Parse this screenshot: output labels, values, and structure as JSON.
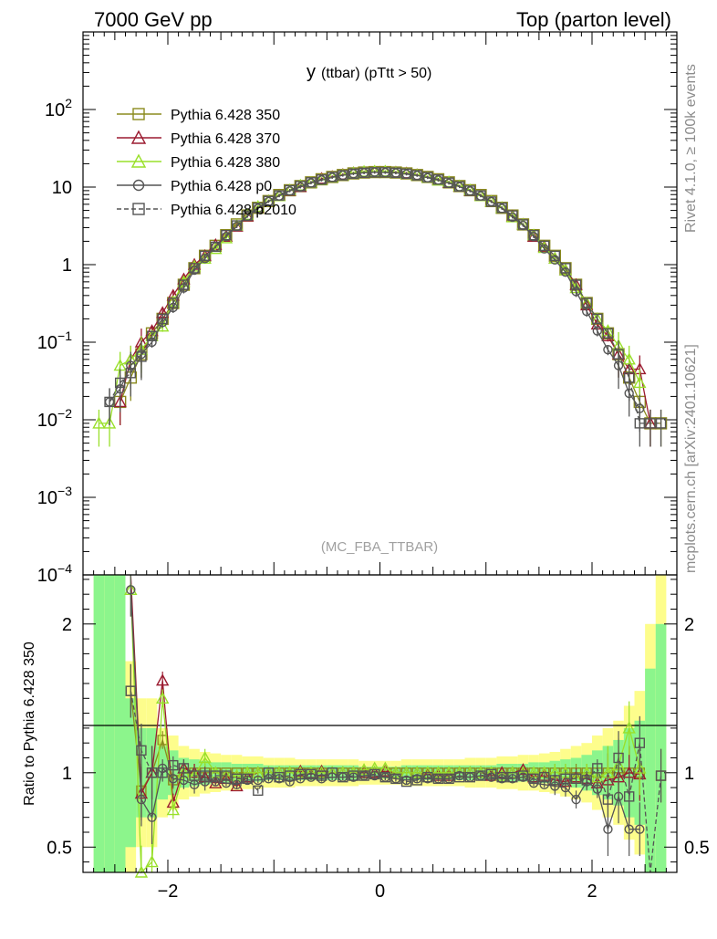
{
  "header": {
    "left": "7000 GeV pp",
    "right": "Top (parton level)"
  },
  "side_labels": {
    "rivet": "Rivet 4.1.0, ≥ 100k events",
    "mcplots": "mcplots.cern.ch [arXiv:2401.10621]"
  },
  "chart_data": {
    "type": "line",
    "title_main": "y",
    "title_sub": "(ttbar)  (pTtt > 50)",
    "watermark": "(MC_FBA_TTBAR)",
    "xlabel": "",
    "ylabel_ratio": "Ratio to Pythia 6.428 350",
    "xlim": [
      -2.8,
      2.8
    ],
    "ylim_main": [
      0.0001,
      1000
    ],
    "ylim_ratio": [
      0.33,
      2.33
    ],
    "x_tick_labels": [
      "−2",
      "0",
      "2"
    ],
    "x_tick_values": [
      -2,
      0,
      2
    ],
    "y_tick_labels_main": [
      {
        "base": "10",
        "exp": "−4",
        "value": 0.0001
      },
      {
        "base": "10",
        "exp": "−3",
        "value": 0.001
      },
      {
        "base": "10",
        "exp": "−2",
        "value": 0.01
      },
      {
        "base": "10",
        "exp": "−1",
        "value": 0.1
      },
      {
        "base": "1",
        "exp": "",
        "value": 1
      },
      {
        "base": "10",
        "exp": "",
        "value": 10
      },
      {
        "base": "10",
        "exp": "2",
        "value": 100
      }
    ],
    "y_tick_labels_ratio": [
      {
        "label": "0.5",
        "value": 0.5
      },
      {
        "label": "1",
        "value": 1
      },
      {
        "label": "2",
        "value": 2
      }
    ],
    "bin_centers": [
      -2.65,
      -2.55,
      -2.45,
      -2.35,
      -2.25,
      -2.15,
      -2.05,
      -1.95,
      -1.85,
      -1.75,
      -1.65,
      -1.55,
      -1.45,
      -1.35,
      -1.25,
      -1.15,
      -1.05,
      -0.95,
      -0.85,
      -0.75,
      -0.65,
      -0.55,
      -0.45,
      -0.35,
      -0.25,
      -0.15,
      -0.05,
      0.05,
      0.15,
      0.25,
      0.35,
      0.45,
      0.55,
      0.65,
      0.75,
      0.85,
      0.95,
      1.05,
      1.15,
      1.25,
      1.35,
      1.45,
      1.55,
      1.65,
      1.75,
      1.85,
      1.95,
      2.05,
      2.15,
      2.25,
      2.35,
      2.45,
      2.55,
      2.65
    ],
    "band_outer": [
      2.2,
      2.2,
      2.2,
      0.75,
      0.5,
      0.5,
      0.3,
      0.25,
      0.18,
      0.16,
      0.14,
      0.13,
      0.12,
      0.12,
      0.11,
      0.11,
      0.1,
      0.1,
      0.1,
      0.09,
      0.09,
      0.09,
      0.09,
      0.09,
      0.09,
      0.08,
      0.08,
      0.08,
      0.08,
      0.09,
      0.09,
      0.09,
      0.09,
      0.09,
      0.09,
      0.1,
      0.1,
      0.1,
      0.11,
      0.11,
      0.12,
      0.12,
      0.13,
      0.14,
      0.16,
      0.18,
      0.2,
      0.25,
      0.3,
      0.35,
      0.45,
      0.55,
      1.0,
      1.4
    ],
    "band_inner": [
      1.5,
      1.5,
      1.5,
      0.5,
      0.3,
      0.3,
      0.18,
      0.15,
      0.1,
      0.09,
      0.08,
      0.07,
      0.07,
      0.06,
      0.06,
      0.06,
      0.05,
      0.05,
      0.05,
      0.05,
      0.05,
      0.05,
      0.05,
      0.05,
      0.05,
      0.04,
      0.04,
      0.04,
      0.04,
      0.05,
      0.05,
      0.05,
      0.05,
      0.05,
      0.05,
      0.05,
      0.05,
      0.05,
      0.06,
      0.06,
      0.06,
      0.07,
      0.07,
      0.08,
      0.09,
      0.1,
      0.12,
      0.15,
      0.18,
      0.22,
      0.3,
      0.35,
      0.7,
      1.0
    ],
    "series": [
      {
        "name": "Pythia 6.428 350",
        "color": "#8b8b1e",
        "dash": "",
        "marker": "square-open",
        "values": [
          null,
          null,
          0.017,
          0.035,
          0.07,
          0.13,
          0.2,
          0.32,
          0.55,
          0.9,
          1.3,
          1.75,
          2.4,
          3.3,
          4.3,
          5.4,
          6.6,
          7.9,
          9.1,
          10.3,
          11.5,
          12.6,
          13.5,
          14.3,
          15.0,
          15.4,
          15.6,
          15.6,
          15.4,
          15.0,
          14.3,
          13.5,
          12.6,
          11.5,
          10.3,
          9.1,
          7.9,
          6.6,
          5.4,
          4.3,
          3.3,
          2.4,
          1.75,
          1.3,
          0.9,
          0.55,
          0.32,
          0.2,
          0.13,
          0.07,
          0.035,
          0.017,
          0.009,
          0.009
        ],
        "ratio": [
          null,
          null,
          null,
          1.55,
          0.88,
          1.0,
          1.22,
          0.95,
          1.0,
          1.0,
          1.0,
          1.0,
          1.0,
          1.0,
          1.0,
          1.0,
          1.0,
          1.0,
          1.0,
          1.0,
          1.0,
          1.0,
          1.0,
          1.0,
          1.0,
          1.0,
          1.0,
          1.0,
          1.0,
          1.0,
          1.0,
          1.0,
          1.0,
          1.0,
          1.0,
          1.0,
          1.0,
          1.0,
          1.0,
          1.0,
          1.0,
          1.0,
          1.0,
          1.0,
          1.0,
          1.0,
          1.0,
          1.0,
          1.0,
          1.0,
          1.0,
          1.0,
          null,
          0.98
        ]
      },
      {
        "name": "Pythia 6.428 370",
        "color": "#9b1b30",
        "dash": "",
        "marker": "triangle-open",
        "values": [
          null,
          null,
          0.017,
          0.06,
          0.1,
          0.14,
          0.24,
          0.4,
          0.65,
          1.0,
          1.3,
          1.8,
          2.3,
          3.1,
          4.2,
          5.5,
          6.6,
          7.8,
          9.0,
          10.1,
          11.4,
          12.8,
          13.6,
          14.5,
          15.2,
          15.5,
          15.6,
          15.7,
          15.5,
          15.1,
          14.4,
          13.4,
          12.3,
          11.4,
          10.2,
          9.0,
          7.8,
          6.5,
          5.4,
          4.2,
          3.3,
          2.3,
          1.7,
          1.2,
          0.85,
          0.55,
          0.3,
          0.17,
          0.12,
          0.07,
          0.045,
          0.045,
          0.009,
          null
        ],
        "ratio": [
          null,
          null,
          null,
          2.62,
          0.86,
          1.0,
          1.62,
          0.8,
          1.03,
          1.0,
          0.97,
          0.93,
          0.96,
          0.91,
          0.97,
          1.0,
          1.0,
          1.0,
          1.0,
          1.01,
          0.99,
          1.01,
          1.0,
          1.0,
          1.0,
          1.0,
          1.0,
          1.01,
          1.0,
          1.0,
          1.0,
          0.99,
          0.98,
          0.98,
          1.0,
          1.0,
          1.0,
          0.98,
          1.0,
          1.0,
          1.02,
          0.97,
          0.98,
          0.95,
          0.94,
          0.97,
          0.96,
          0.93,
          0.95,
          0.97,
          1.0,
          0.99,
          null,
          null
        ]
      },
      {
        "name": "Pythia 6.428 380",
        "color": "#99e02a",
        "dash": "",
        "marker": "triangle-open",
        "values": [
          0.009,
          0.009,
          0.05,
          0.06,
          0.08,
          0.12,
          0.16,
          0.33,
          0.6,
          0.95,
          1.2,
          1.6,
          2.2,
          3.2,
          4.4,
          5.6,
          6.6,
          7.7,
          9.1,
          10.5,
          11.4,
          12.4,
          13.4,
          14.3,
          15.2,
          15.8,
          15.9,
          15.9,
          15.4,
          14.9,
          14.3,
          13.3,
          12.2,
          11.6,
          10.3,
          9.1,
          7.7,
          6.5,
          5.4,
          4.1,
          3.3,
          2.4,
          1.65,
          1.2,
          0.85,
          0.5,
          0.32,
          0.2,
          0.14,
          0.09,
          0.06,
          0.03,
          null,
          null
        ],
        "ratio": [
          null,
          null,
          null,
          2.23,
          0.33,
          0.4,
          1.5,
          0.75,
          1.0,
          0.98,
          1.1,
          1.0,
          0.98,
          0.98,
          1.0,
          1.0,
          1.0,
          1.0,
          1.0,
          1.0,
          1.0,
          1.0,
          1.0,
          1.0,
          1.0,
          1.02,
          1.03,
          1.03,
          1.0,
          1.0,
          1.0,
          1.0,
          1.0,
          1.0,
          1.0,
          1.0,
          1.0,
          1.0,
          0.98,
          1.0,
          1.0,
          1.0,
          1.0,
          1.0,
          1.0,
          0.96,
          1.0,
          0.97,
          1.0,
          1.05,
          1.3,
          1.03,
          null,
          null
        ]
      },
      {
        "name": "Pythia 6.428 p0",
        "color": "#555555",
        "dash": "",
        "marker": "circle-open",
        "values": [
          null,
          0.017,
          0.025,
          0.05,
          0.07,
          0.1,
          0.18,
          0.28,
          0.5,
          0.85,
          1.2,
          1.7,
          2.3,
          3.1,
          4.2,
          5.3,
          6.5,
          7.7,
          8.9,
          10.0,
          11.3,
          12.3,
          13.3,
          14.2,
          14.9,
          15.3,
          15.6,
          15.4,
          15.2,
          14.7,
          14.1,
          13.2,
          12.3,
          11.2,
          10.1,
          8.9,
          7.7,
          6.5,
          5.3,
          4.1,
          3.2,
          2.3,
          1.6,
          1.15,
          0.8,
          0.45,
          0.25,
          0.14,
          0.08,
          0.05,
          0.022,
          0.014,
          null,
          null
        ],
        "ratio": [
          null,
          null,
          null,
          2.23,
          0.82,
          0.7,
          1.03,
          0.96,
          0.95,
          0.92,
          0.94,
          0.94,
          0.93,
          0.92,
          0.95,
          0.95,
          0.96,
          0.96,
          0.94,
          0.96,
          0.97,
          0.96,
          0.97,
          0.97,
          0.97,
          0.98,
          0.98,
          0.97,
          0.96,
          0.95,
          0.96,
          0.96,
          0.96,
          0.96,
          0.98,
          0.97,
          0.98,
          0.97,
          0.96,
          0.96,
          0.97,
          0.93,
          0.92,
          0.91,
          0.9,
          0.82,
          0.94,
          0.89,
          0.62,
          0.84,
          0.62,
          0.62,
          null,
          null
        ]
      },
      {
        "name": "Pythia 6.428 p2010",
        "color": "#555555",
        "dash": "5,3",
        "marker": "square-open",
        "values": [
          null,
          0.017,
          0.03,
          0.04,
          0.065,
          0.12,
          0.2,
          0.32,
          0.55,
          0.9,
          1.3,
          1.7,
          2.4,
          3.2,
          4.3,
          5.4,
          6.6,
          7.8,
          9.1,
          10.3,
          11.5,
          12.5,
          13.5,
          14.2,
          14.9,
          15.3,
          15.5,
          15.5,
          15.3,
          14.9,
          14.2,
          13.4,
          12.5,
          11.4,
          10.2,
          9.0,
          7.8,
          6.5,
          5.4,
          4.3,
          3.3,
          2.4,
          1.75,
          1.3,
          0.9,
          0.55,
          0.32,
          0.2,
          0.13,
          0.07,
          0.035,
          0.009,
          0.009,
          0.009
        ],
        "ratio": [
          null,
          null,
          null,
          1.55,
          1.15,
          1.0,
          1.0,
          1.05,
          1.03,
          0.98,
          0.98,
          0.98,
          0.98,
          0.96,
          0.96,
          0.88,
          1.0,
          0.97,
          0.98,
          0.99,
          0.99,
          0.98,
          1.0,
          0.97,
          0.98,
          0.98,
          0.99,
          0.97,
          0.96,
          0.94,
          0.95,
          0.97,
          0.96,
          0.96,
          0.97,
          0.97,
          0.98,
          0.99,
          0.97,
          0.97,
          0.98,
          0.96,
          0.97,
          0.95,
          0.96,
          0.96,
          0.95,
          1.03,
          0.82,
          1.1,
          0.84,
          1.2,
          0.25,
          0.98
        ]
      }
    ]
  }
}
